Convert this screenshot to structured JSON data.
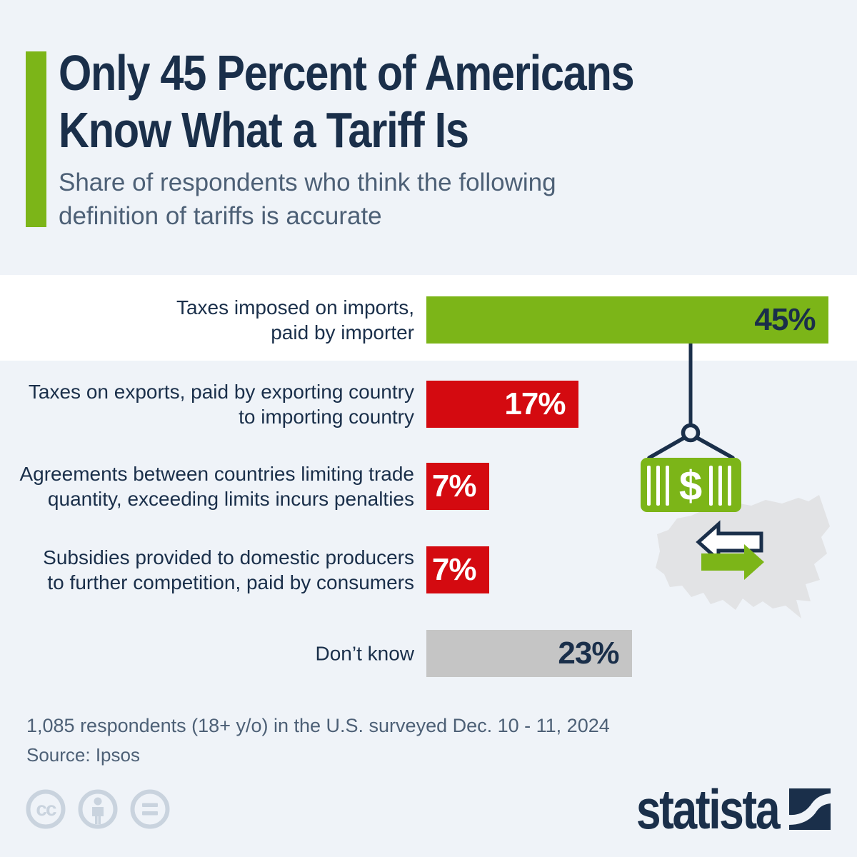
{
  "colors": {
    "bg": "#eff3f8",
    "band": "#ffffff",
    "green": "#7cb518",
    "red": "#d40a10",
    "gray_bar": "#c5c5c5",
    "navy": "#1a2f4a",
    "slate": "#4d6076",
    "map_gray": "#e2e3e5",
    "license_gray": "#c9d3de",
    "white": "#ffffff"
  },
  "header": {
    "title_line1": "Only 45 Percent of Americans",
    "title_line2": "Know What a Tariff Is",
    "subtitle_line1": "Share of respondents who think the following",
    "subtitle_line2": "definition of tariffs is accurate"
  },
  "chart_data": {
    "type": "bar",
    "orientation": "horizontal",
    "unit": "percent",
    "title": "Share of respondents who think the following definition of tariffs is accurate",
    "categories": [
      "Taxes imposed on imports, paid by importer",
      "Taxes on exports, paid by exporting country to importing country",
      "Agreements between countries limiting trade quantity, exceeding limits incurs penalties",
      "Subsidies provided to domestic producers to further competition, paid by consumers",
      "Don’t know"
    ],
    "values": [
      45,
      17,
      7,
      7,
      23
    ],
    "rows": [
      {
        "label_lines": [
          "Taxes imposed on imports,",
          "paid by importer"
        ],
        "value": 45,
        "value_label": "45%",
        "bar_color": "#7cb518",
        "value_text_color": "#1a2f4a",
        "highlighted": true
      },
      {
        "label_lines": [
          "Taxes on exports, paid by exporting country",
          "to importing country"
        ],
        "value": 17,
        "value_label": "17%",
        "bar_color": "#d40a10",
        "value_text_color": "#ffffff",
        "highlighted": false
      },
      {
        "label_lines": [
          "Agreements between countries limiting trade",
          "quantity, exceeding limits incurs penalties"
        ],
        "value": 7,
        "value_label": "7%",
        "bar_color": "#d40a10",
        "value_text_color": "#ffffff",
        "highlighted": false
      },
      {
        "label_lines": [
          "Subsidies provided to domestic producers",
          "to further competition, paid by consumers"
        ],
        "value": 7,
        "value_label": "7%",
        "bar_color": "#d40a10",
        "value_text_color": "#ffffff",
        "highlighted": false
      },
      {
        "label_lines": [
          "Don’t know"
        ],
        "value": 23,
        "value_label": "23%",
        "bar_color": "#c5c5c5",
        "value_text_color": "#1a2f4a",
        "highlighted": false
      }
    ],
    "legend": null,
    "grid": false
  },
  "illustration": {
    "container_symbol": "$",
    "elements": [
      "crane-line",
      "crane-hook",
      "shipping-container",
      "us-map",
      "import-arrow",
      "export-arrow"
    ]
  },
  "footer": {
    "note": "1,085 respondents (18+ y/o) in the U.S. surveyed Dec. 10 - 11, 2024",
    "source": "Source: Ipsos"
  },
  "branding": {
    "logo_text": "statista",
    "license_icons": [
      "cc",
      "attribution",
      "no-derivatives"
    ]
  }
}
